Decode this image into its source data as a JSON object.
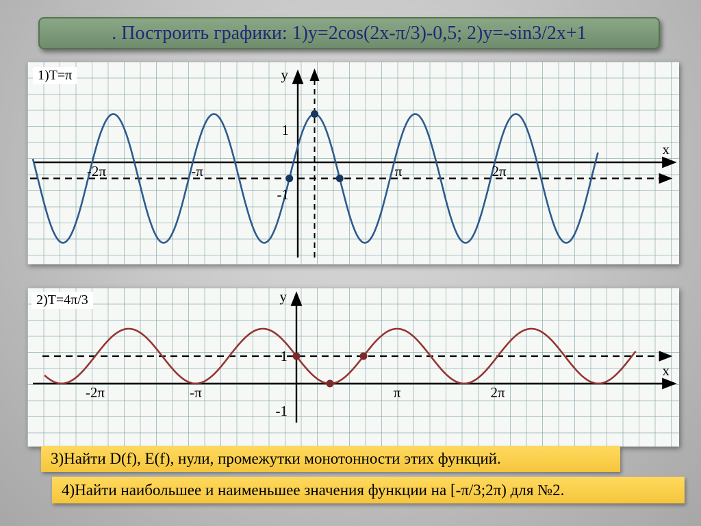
{
  "slide": {
    "title": ". Построить графики: 1)y=2cos(2x-π/3)-0,5;  2)y=-sin3/2x+1"
  },
  "tasks": {
    "task3": "3)Найти D(f), E(f), нули, промежутки монотонности этих функций.",
    "task4": "4)Найти наибольшее и наименьшее значения функции на [-π/3;2π) для №2."
  },
  "colors": {
    "title_bar_green": "#7d9c78",
    "title_text_blue": "#1e2a78",
    "banner_yellow": "#f8cc45",
    "paper_grid_teal": "#8fb4b6",
    "curve1_blue": "#2e5b8f",
    "curve2_red": "#943634"
  },
  "chart_data": [
    {
      "type": "line",
      "title": "y=2cos(2x-π/3)-0,5",
      "period_label": "1)T=π",
      "function": {
        "expr": "y=2cos(2x-π/3)-0,5",
        "trig": "cos",
        "A": 2,
        "B": 2,
        "C": -1.0472,
        "D": -0.5
      },
      "color": "#2e5b8f",
      "point_color": "#17365d",
      "x_range_rad": [
        -8.27,
        9.4
      ],
      "ylim": [
        -2.5,
        1.5
      ],
      "grid": true,
      "axis": {
        "x_label": "x",
        "y_label": "y"
      },
      "x_ticks": [
        {
          "label": "-2π",
          "value": -6.2832
        },
        {
          "label": "-π",
          "value": -3.1416
        },
        {
          "label": "π",
          "value": 3.1416
        },
        {
          "label": "2π",
          "value": 6.2832
        }
      ],
      "y_ticks": [
        {
          "label": "1",
          "value": 1
        },
        {
          "label": "-1",
          "value": -1
        }
      ],
      "dashed_horizontal_y": -0.5,
      "dashed_vertical_x": 0.5236,
      "key_points": [
        {
          "x": 0.5236,
          "y": 1.5
        },
        {
          "x": -0.2618,
          "y": -0.5
        },
        {
          "x": 1.309,
          "y": -0.5
        }
      ]
    },
    {
      "type": "line",
      "title": "y=-sin3/2x+1",
      "period_label": "2)T=4π/3",
      "function": {
        "expr": "y=-sin(3/2·x)+1",
        "trig": "sin",
        "A": -1,
        "B": 1.5,
        "C": 0,
        "D": 1
      },
      "color": "#943634",
      "point_color": "#7f2a2a",
      "x_range_rad": [
        -7.86,
        10.6
      ],
      "ylim": [
        0,
        2
      ],
      "grid": true,
      "axis": {
        "x_label": "x",
        "y_label": "y"
      },
      "x_ticks": [
        {
          "label": "-2π",
          "value": -6.2832
        },
        {
          "label": "-π",
          "value": -3.1416
        },
        {
          "label": "π",
          "value": 3.1416
        },
        {
          "label": "2π",
          "value": 6.2832
        }
      ],
      "y_ticks": [
        {
          "label": "1",
          "value": 1
        },
        {
          "label": "-1",
          "value": -1
        }
      ],
      "dashed_horizontal_y": 1,
      "dashed_vertical_x": null,
      "key_points": [
        {
          "x": 0,
          "y": 1
        },
        {
          "x": 2.0944,
          "y": 1
        },
        {
          "x": 1.0472,
          "y": 0
        }
      ]
    }
  ]
}
